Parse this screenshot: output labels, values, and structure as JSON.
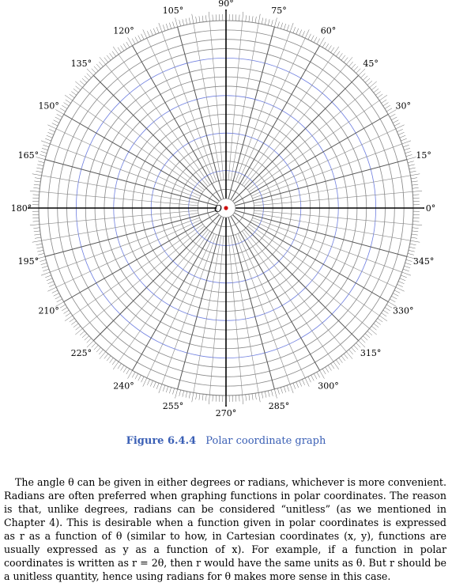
{
  "figure": {
    "origin_label": "O",
    "angle_labels": [
      "0°",
      "15°",
      "30°",
      "45°",
      "60°",
      "75°",
      "90°",
      "105°",
      "120°",
      "135°",
      "150°",
      "165°",
      "180°",
      "195°",
      "210°",
      "225°",
      "240°",
      "255°",
      "270°",
      "285°",
      "300°",
      "315°",
      "330°",
      "345°"
    ],
    "angles_deg": [
      0,
      15,
      30,
      45,
      60,
      75,
      90,
      105,
      120,
      135,
      150,
      165,
      180,
      195,
      210,
      225,
      240,
      255,
      270,
      285,
      300,
      315,
      330,
      345
    ],
    "ring_count": 20,
    "highlighted_every": 4,
    "colors": {
      "grid": "#888888",
      "highlight_ring": "#6f7fe0",
      "origin_dot": "#d01010",
      "axis": "#000000"
    }
  },
  "caption": {
    "number": "Figure 6.4.4",
    "title": "Polar coordinate graph"
  },
  "paragraph": "The angle θ can be given in either degrees or radians, whichever is more convenient. Radians are often preferred when graphing functions in polar coordinates. The reason is that, unlike degrees, radians can be considered “unitless” (as we mentioned in Chapter 4). This is desirable when a function given in polar coordinates is expressed as r as a function of θ (similar to how, in Cartesian coordinates (x, y), functions are usually expressed as y as a function of x). For example, if a function in polar coordinates is written as r = 2θ, then r would have the same units as θ. But r should be a unitless quantity, hence using radians for θ makes more sense in this case."
}
